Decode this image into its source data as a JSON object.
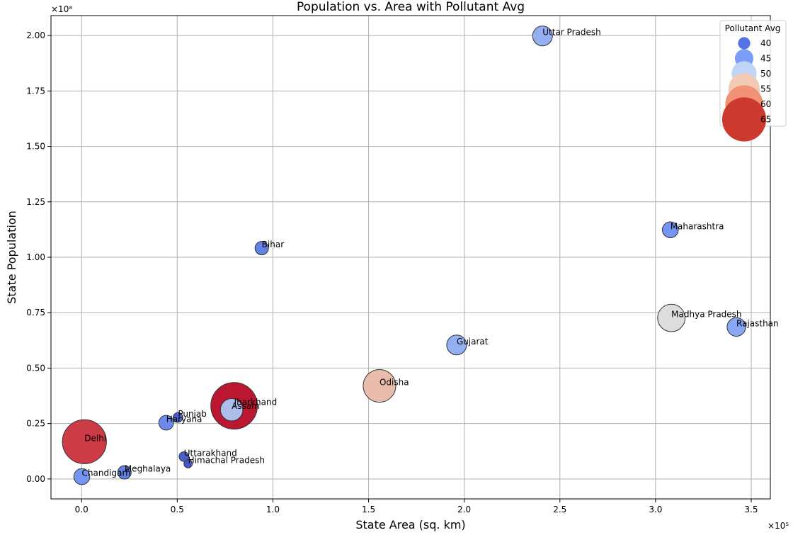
{
  "chart_data": {
    "type": "scatter",
    "title": "Population vs. Area with Pollutant Avg",
    "xlabel": "State Area (sq. km)",
    "ylabel": "State Population",
    "x_multiplier": "×10⁵",
    "y_multiplier": "×10⁸",
    "xlim": [
      -16000,
      360000
    ],
    "ylim": [
      -9000000,
      209000000
    ],
    "xticks": [
      0,
      50000,
      100000,
      150000,
      200000,
      250000,
      300000,
      350000
    ],
    "xtick_labels": [
      "0.0",
      "0.5",
      "1.0",
      "1.5",
      "2.0",
      "2.5",
      "3.0",
      "3.5"
    ],
    "yticks": [
      0,
      25000000,
      50000000,
      75000000,
      100000000,
      125000000,
      150000000,
      175000000,
      200000000
    ],
    "ytick_labels": [
      "0.00",
      "0.25",
      "0.50",
      "0.75",
      "1.00",
      "1.25",
      "1.50",
      "1.75",
      "2.00"
    ],
    "grid": true,
    "size_encodes": "pollutant_avg",
    "color_encodes": "pollutant_avg",
    "colormap": "coolwarm",
    "points": [
      {
        "label": "Uttar Pradesh",
        "x": 240928,
        "y": 199812341,
        "pollutant": 46
      },
      {
        "label": "Maharashtra",
        "x": 307713,
        "y": 112374333,
        "pollutant": 43
      },
      {
        "label": "Bihar",
        "x": 94163,
        "y": 104099452,
        "pollutant": 41
      },
      {
        "label": "Madhya Pradesh",
        "x": 308252,
        "y": 72626809,
        "pollutant": 52
      },
      {
        "label": "Rajasthan",
        "x": 342239,
        "y": 68548437,
        "pollutant": 45
      },
      {
        "label": "Gujarat",
        "x": 196024,
        "y": 60439692,
        "pollutant": 46
      },
      {
        "label": "Odisha",
        "x": 155707,
        "y": 41974218,
        "pollutant": 56
      },
      {
        "label": "Jharkhand",
        "x": 79716,
        "y": 32988134,
        "pollutant": 67
      },
      {
        "label": "Assam",
        "x": 78438,
        "y": 31205576,
        "pollutant": 48
      },
      {
        "label": "Punjab",
        "x": 50362,
        "y": 27743338,
        "pollutant": 38
      },
      {
        "label": "Haryana",
        "x": 44212,
        "y": 25351462,
        "pollutant": 42
      },
      {
        "label": "Delhi",
        "x": 1484,
        "y": 16787941,
        "pollutant": 65
      },
      {
        "label": "Uttarakhand",
        "x": 53483,
        "y": 10086292,
        "pollutant": 38
      },
      {
        "label": "Himachal Pradesh",
        "x": 55673,
        "y": 6864602,
        "pollutant": 37
      },
      {
        "label": "Meghalaya",
        "x": 22429,
        "y": 2966889,
        "pollutant": 41
      },
      {
        "label": "Chandigarh",
        "x": 114,
        "y": 1055450,
        "pollutant": 43
      }
    ],
    "legend": {
      "title": "Pollutant Avg",
      "placement": "top-right",
      "entries": [
        {
          "label": "40",
          "value": 40,
          "color": "#5573e3"
        },
        {
          "label": "45",
          "value": 45,
          "color": "#7b9ff9"
        },
        {
          "label": "50",
          "value": 50,
          "color": "#c0d4f5"
        },
        {
          "label": "55",
          "value": 55,
          "color": "#f2cab5"
        },
        {
          "label": "60",
          "value": 60,
          "color": "#f29274"
        },
        {
          "label": "65",
          "value": 65,
          "color": "#cc3a2f"
        }
      ]
    }
  }
}
